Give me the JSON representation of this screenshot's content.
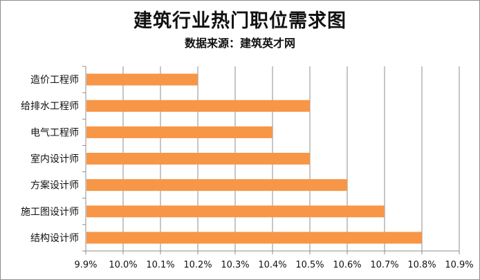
{
  "chart_data": {
    "type": "bar",
    "orientation": "horizontal",
    "title": "建筑行业热门职位需求图",
    "subtitle": "数据来源：建筑英才网",
    "categories": [
      "造价工程师",
      "给排水工程师",
      "电气工程师",
      "室内设计师",
      "方案设计师",
      "施工图设计师",
      "结构设计师"
    ],
    "values": [
      10.2,
      10.5,
      10.4,
      10.5,
      10.6,
      10.7,
      10.8
    ],
    "value_unit": "%",
    "xlim": [
      9.9,
      10.9
    ],
    "x_ticks": [
      "9.9%",
      "10.0%",
      "10.1%",
      "10.2%",
      "10.3%",
      "10.4%",
      "10.5%",
      "10.6%",
      "10.7%",
      "10.8%",
      "10.9%"
    ],
    "grid": true,
    "legend": "none",
    "bar_color": "#f79646",
    "grid_color": "#8c8c8c"
  }
}
